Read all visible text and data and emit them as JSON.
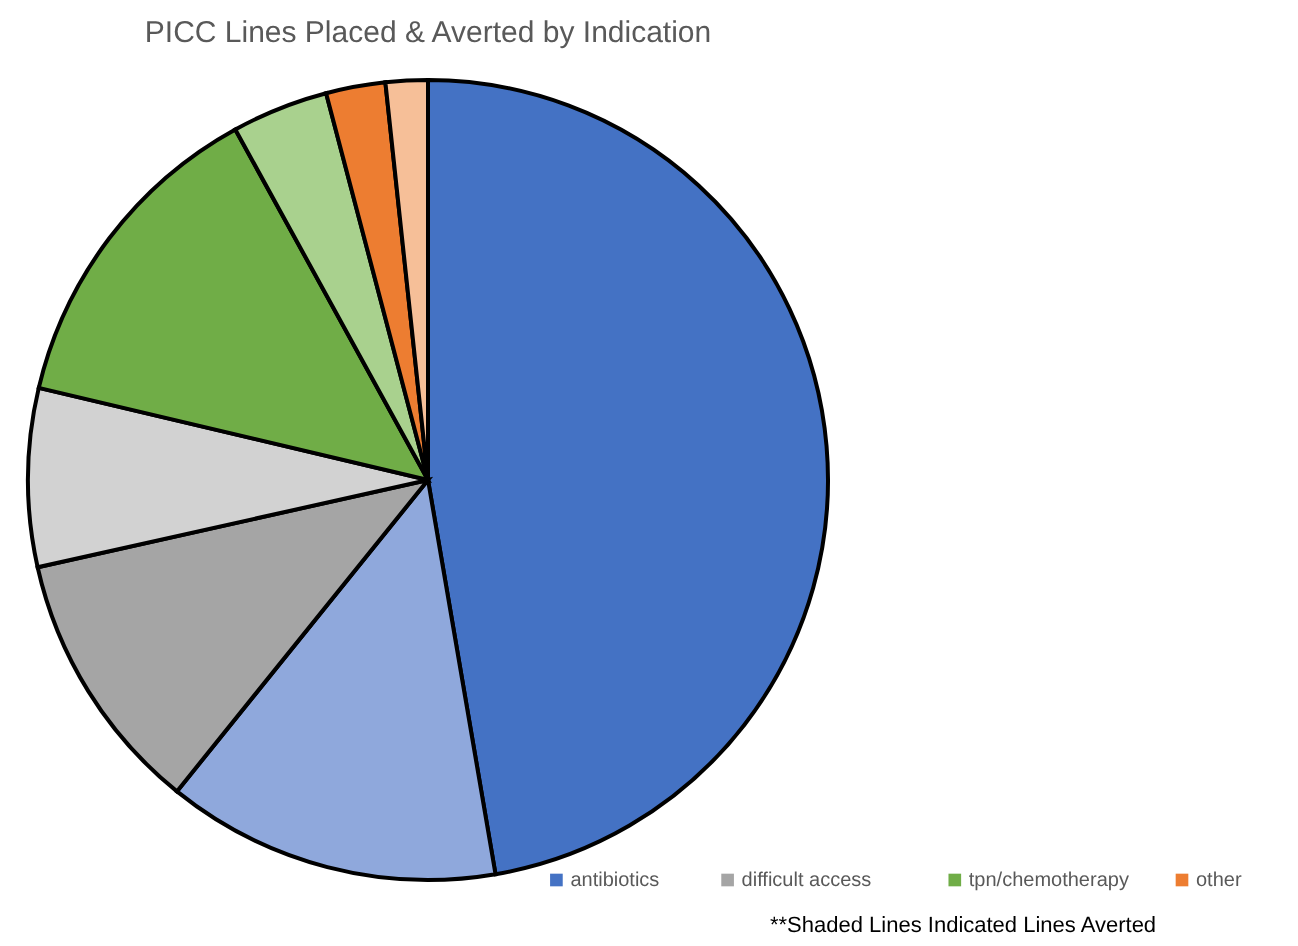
{
  "chart_data": {
    "type": "pie",
    "title": "PICC Lines Placed & Averted by Indication",
    "categories": [
      "antibiotics",
      null,
      "difficult access",
      null,
      "tpn/chemotherapy",
      null,
      "other",
      null
    ],
    "values": [
      47.3,
      13.5,
      10.7,
      7.2,
      13.3,
      3.9,
      2.4,
      1.7
    ],
    "colors": [
      "#4472c4",
      "#8fa8dc",
      "#a5a5a5",
      "#d2d2d2",
      "#70ad47",
      "#a9d18e",
      "#ed7d31",
      "#f6bf98"
    ],
    "legend": "bottom right",
    "annotations": [
      "**Shaded Lines Indicated Lines Averted"
    ]
  }
}
